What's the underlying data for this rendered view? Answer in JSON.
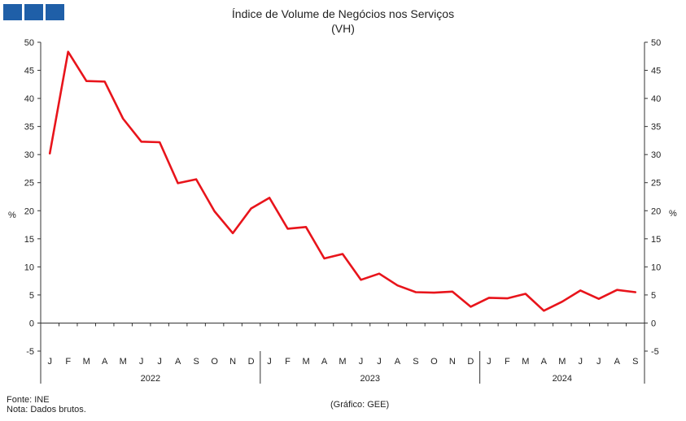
{
  "header": {
    "logo_colors": [
      "#1f5fa8",
      "#1f5fa8",
      "#1f5fa8"
    ]
  },
  "footer": {
    "source": "Fonte: INE",
    "note": "Nota: Dados brutos.",
    "credit": "(Gráfico: GEE)"
  },
  "chart_data": {
    "type": "line",
    "title": "Índice de Volume de Negócios nos Serviços",
    "subtitle": "(VH)",
    "ylabel_left": "%",
    "ylabel_right": "%",
    "ylim": [
      -5,
      50
    ],
    "yticks": [
      -5,
      0,
      5,
      10,
      15,
      20,
      25,
      30,
      35,
      40,
      45,
      50
    ],
    "grid": false,
    "categories": [
      "J",
      "F",
      "M",
      "A",
      "M",
      "J",
      "J",
      "A",
      "S",
      "O",
      "N",
      "D",
      "J",
      "F",
      "M",
      "A",
      "M",
      "J",
      "J",
      "A",
      "S",
      "O",
      "N",
      "D",
      "J",
      "F",
      "M",
      "A",
      "M",
      "J",
      "J",
      "A",
      "S"
    ],
    "years": [
      "2022",
      "2023",
      "2024"
    ],
    "series": [
      {
        "color": "#e8141b",
        "values": [
          30.2,
          48.3,
          43.1,
          43.0,
          36.4,
          32.3,
          32.2,
          24.9,
          25.6,
          19.9,
          16.0,
          20.4,
          22.3,
          16.8,
          17.1,
          11.5,
          12.3,
          7.7,
          8.8,
          6.7,
          5.5,
          5.4,
          5.6,
          2.9,
          4.5,
          4.4,
          5.2,
          2.2,
          3.8,
          5.8,
          4.3,
          5.9,
          5.5
        ]
      }
    ]
  }
}
